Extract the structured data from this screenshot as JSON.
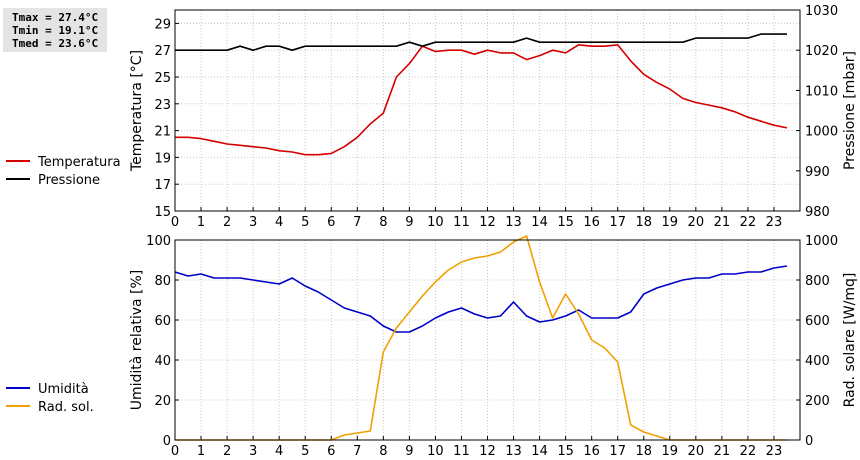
{
  "stats": {
    "tmax": "Tmax = 27.4°C",
    "tmin": "Tmin = 19.1°C",
    "tmed": "Tmed = 23.6°C"
  },
  "chart_data": [
    {
      "type": "line",
      "xlim": [
        0,
        24
      ],
      "x_ticks": [
        0,
        1,
        2,
        3,
        4,
        5,
        6,
        7,
        8,
        9,
        10,
        11,
        12,
        13,
        14,
        15,
        16,
        17,
        18,
        19,
        20,
        21,
        22,
        23
      ],
      "grid": true,
      "legend_placement": "left",
      "y_left": {
        "label": "Temperatura [°C]",
        "range": [
          15,
          30
        ],
        "ticks": [
          15,
          17,
          19,
          21,
          23,
          25,
          27,
          29
        ]
      },
      "y_right": {
        "label": "Pressione [mbar]",
        "range": [
          980,
          1030
        ],
        "ticks": [
          980,
          990,
          1000,
          1010,
          1020,
          1030
        ]
      },
      "series": [
        {
          "name": "Temperatura",
          "axis": "left",
          "color": "#d40000",
          "x": [
            0,
            0.5,
            1,
            1.5,
            2,
            2.5,
            3,
            3.5,
            4,
            4.5,
            5,
            5.5,
            6,
            6.5,
            7,
            7.5,
            8,
            8.5,
            9,
            9.5,
            10,
            10.5,
            11,
            11.5,
            12,
            12.5,
            13,
            13.5,
            14,
            14.5,
            15,
            15.5,
            16,
            16.5,
            17,
            17.5,
            18,
            18.5,
            19,
            19.5,
            20,
            20.5,
            21,
            21.5,
            22,
            22.5,
            23,
            23.5
          ],
          "y": [
            20.5,
            20.5,
            20.4,
            20.2,
            20.0,
            19.9,
            19.8,
            19.7,
            19.5,
            19.4,
            19.2,
            19.2,
            19.3,
            19.8,
            20.5,
            21.5,
            22.3,
            25.0,
            26.0,
            27.3,
            26.9,
            27.0,
            27.0,
            26.7,
            27.0,
            26.8,
            26.8,
            26.3,
            26.6,
            27.0,
            26.8,
            27.4,
            27.3,
            27.3,
            27.4,
            26.2,
            25.2,
            24.6,
            24.1,
            23.4,
            23.1,
            22.9,
            22.7,
            22.4,
            22.0,
            21.7,
            21.4,
            21.2
          ]
        },
        {
          "name": "Pressione",
          "axis": "right",
          "color": "#000000",
          "x": [
            0,
            0.5,
            1,
            1.5,
            2,
            2.5,
            3,
            3.5,
            4,
            4.5,
            5,
            5.5,
            6,
            6.5,
            7,
            7.5,
            8,
            8.5,
            9,
            9.5,
            10,
            10.5,
            11,
            11.5,
            12,
            12.5,
            13,
            13.5,
            14,
            14.5,
            15,
            15.5,
            16,
            16.5,
            17,
            17.5,
            18,
            18.5,
            19,
            19.5,
            20,
            20.5,
            21,
            21.5,
            22,
            22.5,
            23,
            23.5
          ],
          "y": [
            1020,
            1020,
            1020,
            1020,
            1020,
            1021,
            1020,
            1021,
            1021,
            1020,
            1021,
            1021,
            1021,
            1021,
            1021,
            1021,
            1021,
            1021,
            1022,
            1021,
            1022,
            1022,
            1022,
            1022,
            1022,
            1022,
            1022,
            1023,
            1022,
            1022,
            1022,
            1022,
            1022,
            1022,
            1022,
            1022,
            1022,
            1022,
            1022,
            1022,
            1023,
            1023,
            1023,
            1023,
            1023,
            1024,
            1024,
            1024
          ]
        }
      ]
    },
    {
      "type": "line",
      "xlim": [
        0,
        24
      ],
      "x_ticks": [
        0,
        1,
        2,
        3,
        4,
        5,
        6,
        7,
        8,
        9,
        10,
        11,
        12,
        13,
        14,
        15,
        16,
        17,
        18,
        19,
        20,
        21,
        22,
        23
      ],
      "grid": true,
      "legend_placement": "left",
      "y_left": {
        "label": "Umidità relativa [%]",
        "range": [
          0,
          100
        ],
        "ticks": [
          0,
          20,
          40,
          60,
          80,
          100
        ]
      },
      "y_right": {
        "label": "Rad. solare [W/mq]",
        "range": [
          0,
          1000
        ],
        "ticks": [
          0,
          200,
          400,
          600,
          800,
          1000
        ]
      },
      "series": [
        {
          "name": "Umidità",
          "axis": "left",
          "color": "#0000c8",
          "x": [
            0,
            0.5,
            1,
            1.5,
            2,
            2.5,
            3,
            3.5,
            4,
            4.5,
            5,
            5.5,
            6,
            6.5,
            7,
            7.5,
            8,
            8.5,
            9,
            9.5,
            10,
            10.5,
            11,
            11.5,
            12,
            12.5,
            13,
            13.5,
            14,
            14.5,
            15,
            15.5,
            16,
            16.5,
            17,
            17.5,
            18,
            18.5,
            19,
            19.5,
            20,
            20.5,
            21,
            21.5,
            22,
            22.5,
            23,
            23.5
          ],
          "y": [
            84,
            82,
            83,
            81,
            81,
            81,
            80,
            79,
            78,
            81,
            77,
            74,
            70,
            66,
            64,
            62,
            57,
            54,
            54,
            57,
            61,
            64,
            66,
            63,
            61,
            62,
            69,
            62,
            59,
            60,
            62,
            65,
            61,
            61,
            61,
            64,
            73,
            76,
            78,
            80,
            81,
            81,
            83,
            83,
            84,
            84,
            86,
            87
          ]
        },
        {
          "name": "Rad. sol.",
          "axis": "right",
          "color": "#f0a000",
          "x": [
            0,
            0.5,
            1,
            1.5,
            2,
            2.5,
            3,
            3.5,
            4,
            4.5,
            5,
            5.5,
            6,
            6.5,
            7,
            7.5,
            8,
            8.5,
            9,
            9.5,
            10,
            10.5,
            11,
            11.5,
            12,
            12.5,
            13,
            13.5,
            14,
            14.5,
            15,
            15.5,
            16,
            16.5,
            17,
            17.5,
            18,
            18.5,
            19,
            19.5,
            20,
            20.5,
            21,
            21.5,
            22,
            22.5,
            23,
            23.5
          ],
          "y": [
            0,
            0,
            0,
            0,
            0,
            0,
            0,
            0,
            0,
            0,
            0,
            0,
            0,
            25,
            35,
            45,
            440,
            560,
            640,
            720,
            790,
            850,
            890,
            910,
            920,
            940,
            990,
            1020,
            790,
            610,
            730,
            630,
            500,
            460,
            390,
            75,
            40,
            20,
            0,
            0,
            0,
            0,
            0,
            0,
            0,
            0,
            0,
            0
          ]
        }
      ]
    }
  ]
}
